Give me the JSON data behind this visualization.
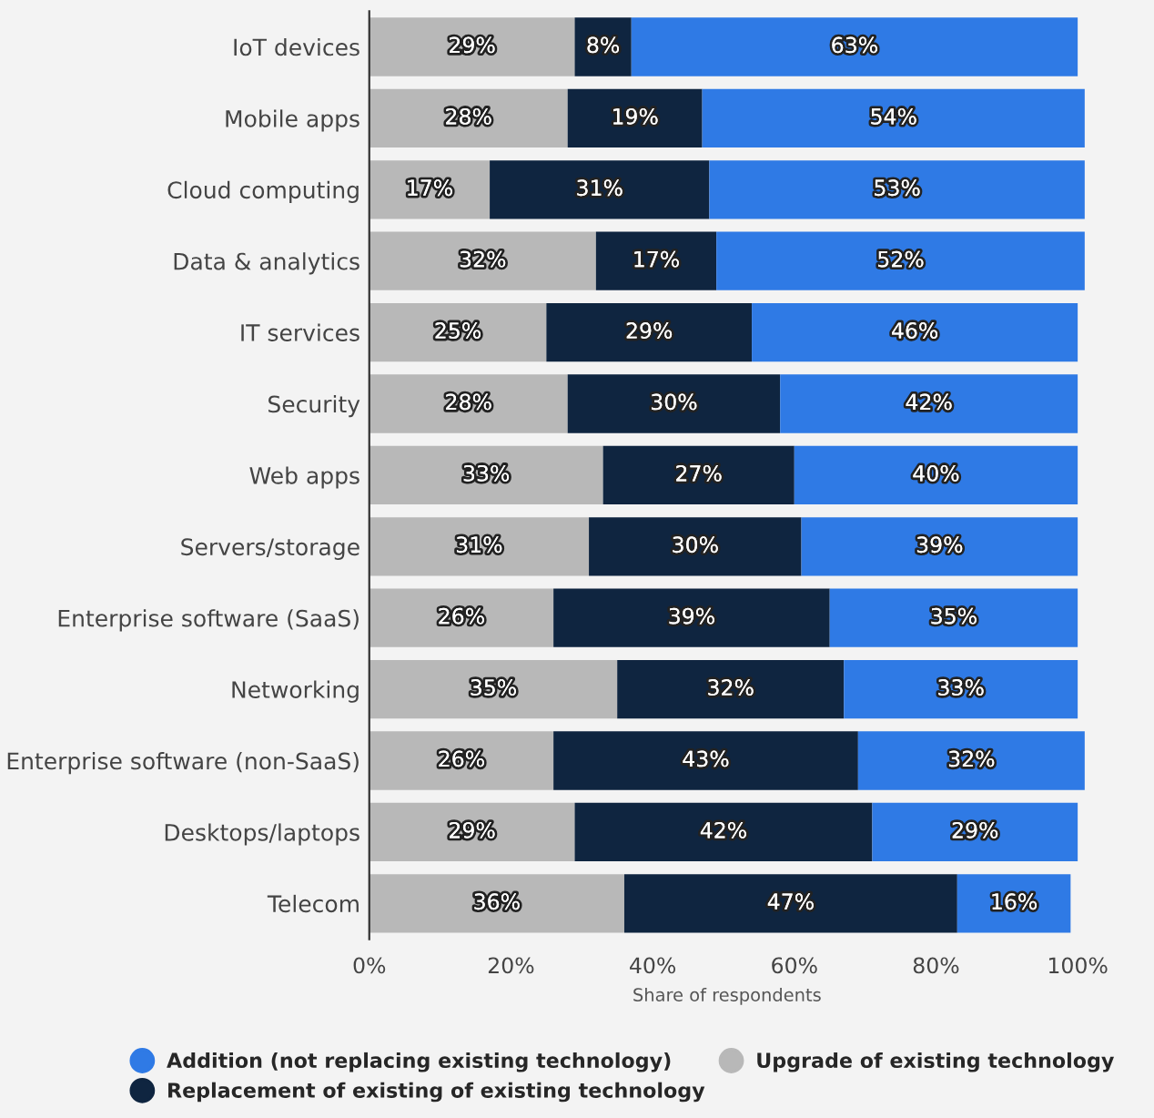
{
  "chart_data": {
    "type": "bar",
    "orientation": "horizontal",
    "stacked": true,
    "xlabel": "Share of respondents",
    "categories": [
      "IoT devices",
      "Mobile apps",
      "Cloud computing",
      "Data & analytics",
      "IT services",
      "Security",
      "Web apps",
      "Servers/storage",
      "Enterprise software (SaaS)",
      "Networking",
      "Enterprise software (non-SaaS)",
      "Desktops/laptops",
      "Telecom"
    ],
    "series": [
      {
        "name": "Upgrade of existing technology",
        "color": "#b8b8b8",
        "values": [
          29,
          28,
          17,
          32,
          25,
          28,
          33,
          31,
          26,
          35,
          26,
          29,
          36
        ],
        "value_labels": [
          "29%",
          "28%",
          "17%",
          "32%",
          "25%",
          "28%",
          "33%",
          "31%",
          "26%",
          "35%",
          "26%",
          "29%",
          "36%"
        ]
      },
      {
        "name": "Replacement of existing of existing technology",
        "color": "#0f2540",
        "values": [
          8,
          19,
          31,
          17,
          29,
          30,
          27,
          30,
          39,
          32,
          43,
          42,
          47
        ],
        "value_labels": [
          "8%",
          "19%",
          "31%",
          "17%",
          "29%",
          "30%",
          "27%",
          "30%",
          "39%",
          "32%",
          "43%",
          "42%",
          "47%"
        ]
      },
      {
        "name": "Addition (not replacing existing technology)",
        "color": "#2f7ae5",
        "values": [
          63,
          54,
          53,
          52,
          46,
          42,
          40,
          39,
          35,
          33,
          32,
          29,
          16
        ],
        "value_labels": [
          "63%",
          "54%",
          "53%",
          "52%",
          "46%",
          "42%",
          "40%",
          "39%",
          "35%",
          "33%",
          "32%",
          "29%",
          "16%"
        ]
      }
    ],
    "xlim": [
      0,
      101
    ],
    "xticks": [
      {
        "value": 0,
        "label": "0%"
      },
      {
        "value": 20,
        "label": "20%"
      },
      {
        "value": 40,
        "label": "40%"
      },
      {
        "value": 60,
        "label": "60%"
      },
      {
        "value": 80,
        "label": "80%"
      },
      {
        "value": 100,
        "label": "100%"
      }
    ],
    "grid": false,
    "legend": "bottom"
  }
}
